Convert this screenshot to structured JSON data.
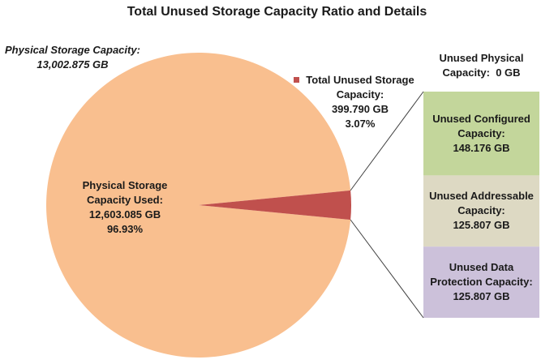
{
  "chart_data": {
    "type": "pie",
    "title": "Total Unused Storage Capacity Ratio and Details",
    "total": {
      "label": "Physical Storage Capacity:",
      "value": 13002.875,
      "value_label": "13,002.875 GB"
    },
    "categories": [
      "Physical Storage Capacity Used:",
      "Total Unused Storage Capacity:"
    ],
    "values": [
      12603.085,
      399.79
    ],
    "value_labels": [
      "12,603.085 GB",
      "399.790 GB"
    ],
    "percents": [
      96.93,
      3.07
    ],
    "percent_labels": [
      "96.93%",
      "3.07%"
    ],
    "colors": [
      "#f9bf8f",
      "#c0504d"
    ],
    "breakdown": {
      "type": "bar",
      "categories": [
        "Unused Physical Capacity:",
        "Unused Configured Capacity:",
        "Unused Addressable Capacity:",
        "Unused Data Protection Capacity:"
      ],
      "values": [
        0,
        148.176,
        125.807,
        125.807
      ],
      "value_labels": [
        "0 GB",
        "148.176 GB",
        "125.807 GB",
        "125.807 GB"
      ],
      "colors": [
        "#ffffff",
        "#c3d69b",
        "#ddd9c3",
        "#ccc1da"
      ]
    }
  }
}
